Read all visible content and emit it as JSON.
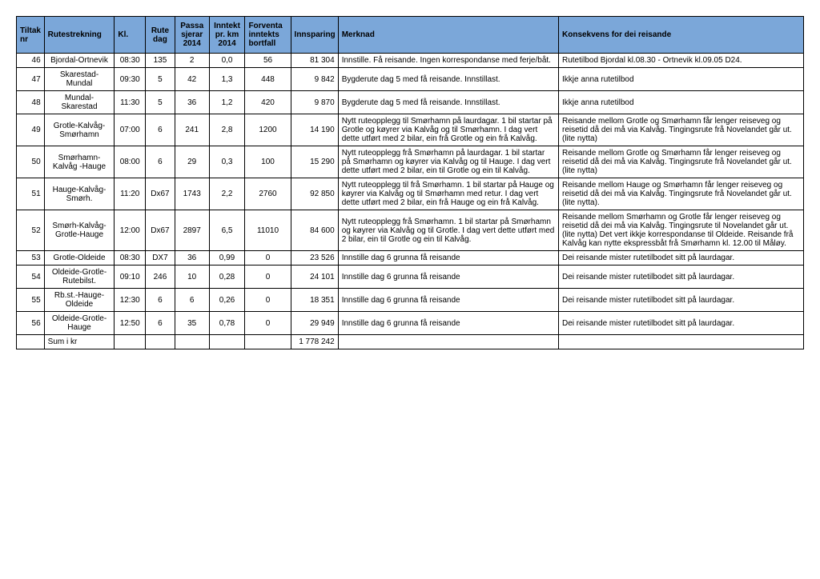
{
  "table": {
    "headers": {
      "nr": "Tiltak nr",
      "rutestrekning": "Rutestrekning",
      "kl": "Kl.",
      "rutedag": "Rute dag",
      "passasjerar": "Passa sjerar 2014",
      "inntekt": "Inntekt pr. km 2014",
      "forventa": "Forventa inntekts bortfall",
      "innsparing": "Innsparing",
      "merknad": "Merknad",
      "konsekvens": "Konsekvens for dei reisande"
    },
    "rows": [
      {
        "nr": "46",
        "rutestrekning": "Bjordal-Ortnevik",
        "kl": "08:30",
        "rutedag": "135",
        "passasjerar": "2",
        "inntekt": "0,0",
        "forventa": "56",
        "innsparing": "81 304",
        "merknad": "Innstille. Få reisande. Ingen korrespondanse med ferje/båt.",
        "konsekvens": "Rutetilbod Bjordal kl.08.30 - Ortnevik kl.09.05 D24."
      },
      {
        "nr": "47",
        "rutestrekning": "Skarestad-Mundal",
        "kl": "09:30",
        "rutedag": "5",
        "passasjerar": "42",
        "inntekt": "1,3",
        "forventa": "448",
        "innsparing": "9 842",
        "merknad": "Bygderute dag 5 med få reisande. Innstillast.",
        "konsekvens": "Ikkje anna rutetilbod"
      },
      {
        "nr": "48",
        "rutestrekning": "Mundal-Skarestad",
        "kl": "11:30",
        "rutedag": "5",
        "passasjerar": "36",
        "inntekt": "1,2",
        "forventa": "420",
        "innsparing": "9 870",
        "merknad": "Bygderute dag 5 med få reisande. Innstillast.",
        "konsekvens": "Ikkje anna rutetilbod"
      },
      {
        "nr": "49",
        "rutestrekning": "Grotle-Kalvåg-Smørhamn",
        "kl": "07:00",
        "rutedag": "6",
        "passasjerar": "241",
        "inntekt": "2,8",
        "forventa": "1200",
        "innsparing": "14 190",
        "merknad": " Nytt ruteopplegg til Smørhamn på laurdagar. 1 bil startar på Grotle og køyrer via Kalvåg og til Smørhamn.  I dag vert dette utført med 2 bilar, ein frå Grotle og ein frå Kalvåg.",
        "konsekvens": "Reisande mellom Grotle og Smørhamn får lenger reiseveg og reisetid då dei må via Kalvåg. Tingingsrute frå Novelandet går ut. (lite nytta)"
      },
      {
        "nr": "50",
        "rutestrekning": "Smørhamn-Kalvåg -Hauge",
        "kl": "08:00",
        "rutedag": "6",
        "passasjerar": "29",
        "inntekt": "0,3",
        "forventa": "100",
        "innsparing": "15 290",
        "merknad": " Nytt ruteopplegg frå Smørhamn på laurdagar. 1 bil startar på Smørhamn og køyrer via Kalvåg og til Hauge.  I dag vert dette utført med 2 bilar, ein til Grotle og ein til Kalvåg.",
        "konsekvens": "Reisande mellom Grotle og Smørhamn får lenger reiseveg og reisetid då dei må via Kalvåg. Tingingsrute frå Novelandet går ut. (lite nytta)"
      },
      {
        "nr": "51",
        "rutestrekning": "Hauge-Kalvåg-Smørh.",
        "kl": "11:20",
        "rutedag": "Dx67",
        "passasjerar": "1743",
        "inntekt": "2,2",
        "forventa": "2760",
        "innsparing": "92 850",
        "merknad": "Nytt ruteopplegg til frå Smørhamn. 1 bil startar på Hauge og køyrer via Kalvåg og til Smørhamn med retur.  I dag vert dette utført med 2 bilar, ein frå Hauge og ein frå Kalvåg.",
        "konsekvens": "Reisande mellom Hauge og Smørhamn får lenger reiseveg og reisetid då dei må via Kalvåg. Tingingsrute frå Novelandet går ut. (lite nytta)."
      },
      {
        "nr": "52",
        "rutestrekning": "Smørh-Kalvåg-Grotle-Hauge",
        "kl": "12:00",
        "rutedag": "Dx67",
        "passasjerar": "2897",
        "inntekt": "6,5",
        "forventa": "11010",
        "innsparing": "84 600",
        "merknad": " Nytt ruteopplegg frå Smørhamn. 1 bil startar på Smørhamn og køyrer via Kalvåg og til Grotle.  I dag vert dette utført med 2 bilar, ein til Grotle og ein til Kalvåg.",
        "konsekvens": "Reisande mellom Smørhamn  og Grotle får lenger reiseveg og reisetid då dei må via Kalvåg. Tingingsrute til Novelandet går ut. (lite nytta) Det vert ikkje korrespondanse til Oldeide. Reisande frå Kalvåg kan nytte ekspressbåt frå Smørhamn kl. 12.00 til Måløy."
      },
      {
        "nr": "53",
        "rutestrekning": "Grotle-Oldeide",
        "kl": "08:30",
        "rutedag": "DX7",
        "passasjerar": "36",
        "inntekt": "0,99",
        "forventa": "0",
        "innsparing": "23 526",
        "merknad": "Innstille dag 6 grunna få reisande",
        "konsekvens": "Dei reisande mister rutetilbodet sitt på laurdagar."
      },
      {
        "nr": "54",
        "rutestrekning": "Oldeide-Grotle-Rutebilst.",
        "kl": "09:10",
        "rutedag": "246",
        "passasjerar": "10",
        "inntekt": "0,28",
        "forventa": "0",
        "innsparing": "24 101",
        "merknad": "Innstille dag 6 grunna få reisande",
        "konsekvens": "Dei reisande mister rutetilbodet sitt på laurdagar."
      },
      {
        "nr": "55",
        "rutestrekning": "Rb.st.-Hauge-Oldeide",
        "kl": "12:30",
        "rutedag": "6",
        "passasjerar": "6",
        "inntekt": "0,26",
        "forventa": "0",
        "innsparing": "18 351",
        "merknad": "Innstille dag 6 grunna få reisande",
        "konsekvens": "Dei reisande mister rutetilbodet sitt på laurdagar."
      },
      {
        "nr": "56",
        "rutestrekning": "Oldeide-Grotle-Hauge",
        "kl": "12:50",
        "rutedag": "6",
        "passasjerar": "35",
        "inntekt": "0,78",
        "forventa": "0",
        "innsparing": "29 949",
        "merknad": "Innstille dag 6 grunna få reisande",
        "konsekvens": "Dei reisande mister rutetilbodet sitt på laurdagar."
      }
    ],
    "sum_label": "Sum i kr",
    "sum_value": "1 778 242"
  },
  "style": {
    "header_bg": "#7ba7d9",
    "border_color": "#000000",
    "font_family": "Arial, sans-serif",
    "base_fontsize": 10
  }
}
